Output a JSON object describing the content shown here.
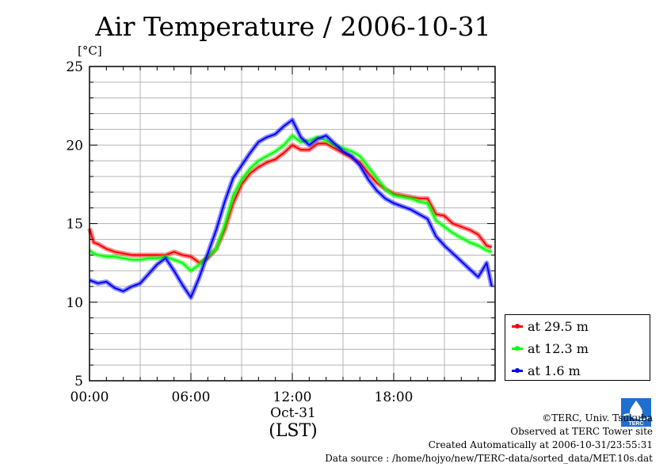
{
  "chart_data": {
    "type": "line",
    "title": "Air Temperature / 2006-10-31",
    "ylabel": "[°C]",
    "xlabel": "(LST)",
    "date_label": "Oct-31",
    "xlim": [
      0,
      24
    ],
    "ylim": [
      5,
      25
    ],
    "x_ticks": [
      0,
      6,
      12,
      18
    ],
    "x_tick_labels": [
      "00:00",
      "06:00",
      "12:00",
      "18:00"
    ],
    "y_ticks": [
      5,
      10,
      15,
      20,
      25
    ],
    "y_tick_labels": [
      "5",
      "10",
      "15",
      "20",
      "25"
    ],
    "grid": true,
    "legend_position": "bottom-right",
    "series": [
      {
        "name": "at 29.5 m",
        "color": "#ff0000",
        "x": [
          0,
          0.25,
          0.5,
          1,
          1.5,
          2,
          2.5,
          3,
          3.5,
          4,
          4.5,
          5,
          5.5,
          6,
          6.5,
          7,
          7.5,
          8,
          8.5,
          9,
          9.5,
          10,
          10.5,
          11,
          11.5,
          12,
          12.5,
          13,
          13.5,
          14,
          14.5,
          15,
          15.5,
          16,
          16.5,
          17,
          17.5,
          18,
          18.5,
          19,
          19.5,
          20,
          20.5,
          21,
          21.5,
          22,
          22.5,
          23,
          23.5,
          23.8
        ],
        "y": [
          14.7,
          13.8,
          13.7,
          13.4,
          13.2,
          13.1,
          13,
          13,
          13,
          13,
          13,
          13.2,
          13,
          12.9,
          12.5,
          12.8,
          13.4,
          14.6,
          16.3,
          17.5,
          18.2,
          18.6,
          18.9,
          19.1,
          19.5,
          20,
          19.7,
          19.7,
          20.1,
          20.1,
          19.8,
          19.5,
          19.2,
          18.9,
          18.2,
          17.6,
          17.2,
          16.9,
          16.8,
          16.7,
          16.6,
          16.6,
          15.6,
          15.5,
          15,
          14.8,
          14.6,
          14.3,
          13.6,
          13.5
        ]
      },
      {
        "name": "at 12.3 m",
        "color": "#00ff00",
        "x": [
          0,
          0.25,
          0.5,
          1,
          1.5,
          2,
          2.5,
          3,
          3.5,
          4,
          4.5,
          5,
          5.5,
          6,
          6.5,
          7,
          7.5,
          8,
          8.5,
          9,
          9.5,
          10,
          10.5,
          11,
          11.5,
          12,
          12.5,
          13,
          13.5,
          14,
          14.5,
          15,
          15.5,
          16,
          16.5,
          17,
          17.5,
          18,
          18.5,
          19,
          19.5,
          20,
          20.5,
          21,
          21.5,
          22,
          22.5,
          23,
          23.5,
          23.8
        ],
        "y": [
          13.3,
          13.1,
          13,
          12.9,
          12.9,
          12.8,
          12.7,
          12.7,
          12.8,
          12.8,
          12.9,
          12.7,
          12.5,
          12,
          12.4,
          12.9,
          13.4,
          14.9,
          16.8,
          17.8,
          18.5,
          19,
          19.3,
          19.6,
          20,
          20.6,
          20.2,
          20.3,
          20.5,
          20.3,
          20,
          19.8,
          19.6,
          19.3,
          18.6,
          17.9,
          17.2,
          16.8,
          16.7,
          16.6,
          16.4,
          16.3,
          15.2,
          14.8,
          14.4,
          14.1,
          13.8,
          13.6,
          13.3,
          13.2
        ]
      },
      {
        "name": "at 1.6 m",
        "color": "#0000ff",
        "x": [
          0,
          0.25,
          0.5,
          1,
          1.5,
          2,
          2.5,
          3,
          3.5,
          4,
          4.5,
          5,
          5.5,
          6,
          6.5,
          7,
          7.5,
          8,
          8.5,
          9,
          9.5,
          10,
          10.5,
          11,
          11.5,
          12,
          12.5,
          13,
          13.5,
          14,
          14.5,
          15,
          15.5,
          16,
          16.5,
          17,
          17.5,
          18,
          18.5,
          19,
          19.5,
          20,
          20.5,
          21,
          21.5,
          22,
          22.5,
          23,
          23.5,
          23.8
        ],
        "y": [
          11.4,
          11.3,
          11.2,
          11.3,
          10.9,
          10.7,
          11,
          11.2,
          11.8,
          12.4,
          12.8,
          12,
          11.1,
          10.3,
          11.6,
          13.1,
          14.6,
          16.4,
          17.9,
          18.7,
          19.5,
          20.2,
          20.5,
          20.7,
          21.2,
          21.6,
          20.5,
          20,
          20.4,
          20.6,
          20.1,
          19.6,
          19.3,
          18.7,
          17.8,
          17.1,
          16.6,
          16.3,
          16.1,
          15.9,
          15.6,
          15.3,
          14.2,
          13.6,
          13.1,
          12.6,
          12.1,
          11.6,
          12.5,
          11
        ]
      }
    ]
  },
  "footer": {
    "copyright": "©TERC, Univ. Tsukuba",
    "observed": "Observed at TERC Tower site",
    "created": "Created Automatically at 2006-10-31/23:55:31",
    "source": "Data source : /home/hojyo/new/TERC-data/sorted_data/MET.10s.dat",
    "logo_text": "TERC"
  }
}
